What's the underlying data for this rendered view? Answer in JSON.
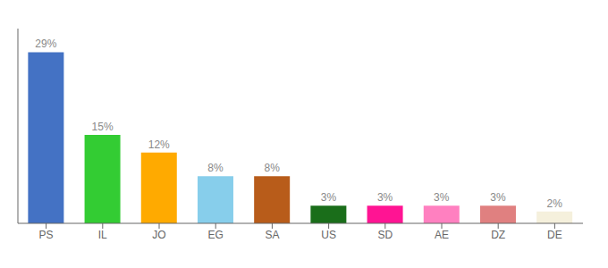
{
  "chart_data": {
    "type": "bar",
    "categories": [
      "PS",
      "IL",
      "JO",
      "EG",
      "SA",
      "US",
      "SD",
      "AE",
      "DZ",
      "DE"
    ],
    "values": [
      29,
      15,
      12,
      8,
      8,
      3,
      3,
      3,
      3,
      2
    ],
    "value_labels": [
      "29%",
      "15%",
      "12%",
      "8%",
      "8%",
      "3%",
      "3%",
      "3%",
      "3%",
      "2%"
    ],
    "colors": [
      "#4472c4",
      "#33cc33",
      "#ffaa00",
      "#87ceeb",
      "#b85c1a",
      "#1a6e1a",
      "#ff1493",
      "#ff80c0",
      "#e08080",
      "#f5f0dc"
    ],
    "ylim": [
      0,
      33
    ],
    "data_labels": true,
    "tick_labels": "x",
    "grid": false
  }
}
